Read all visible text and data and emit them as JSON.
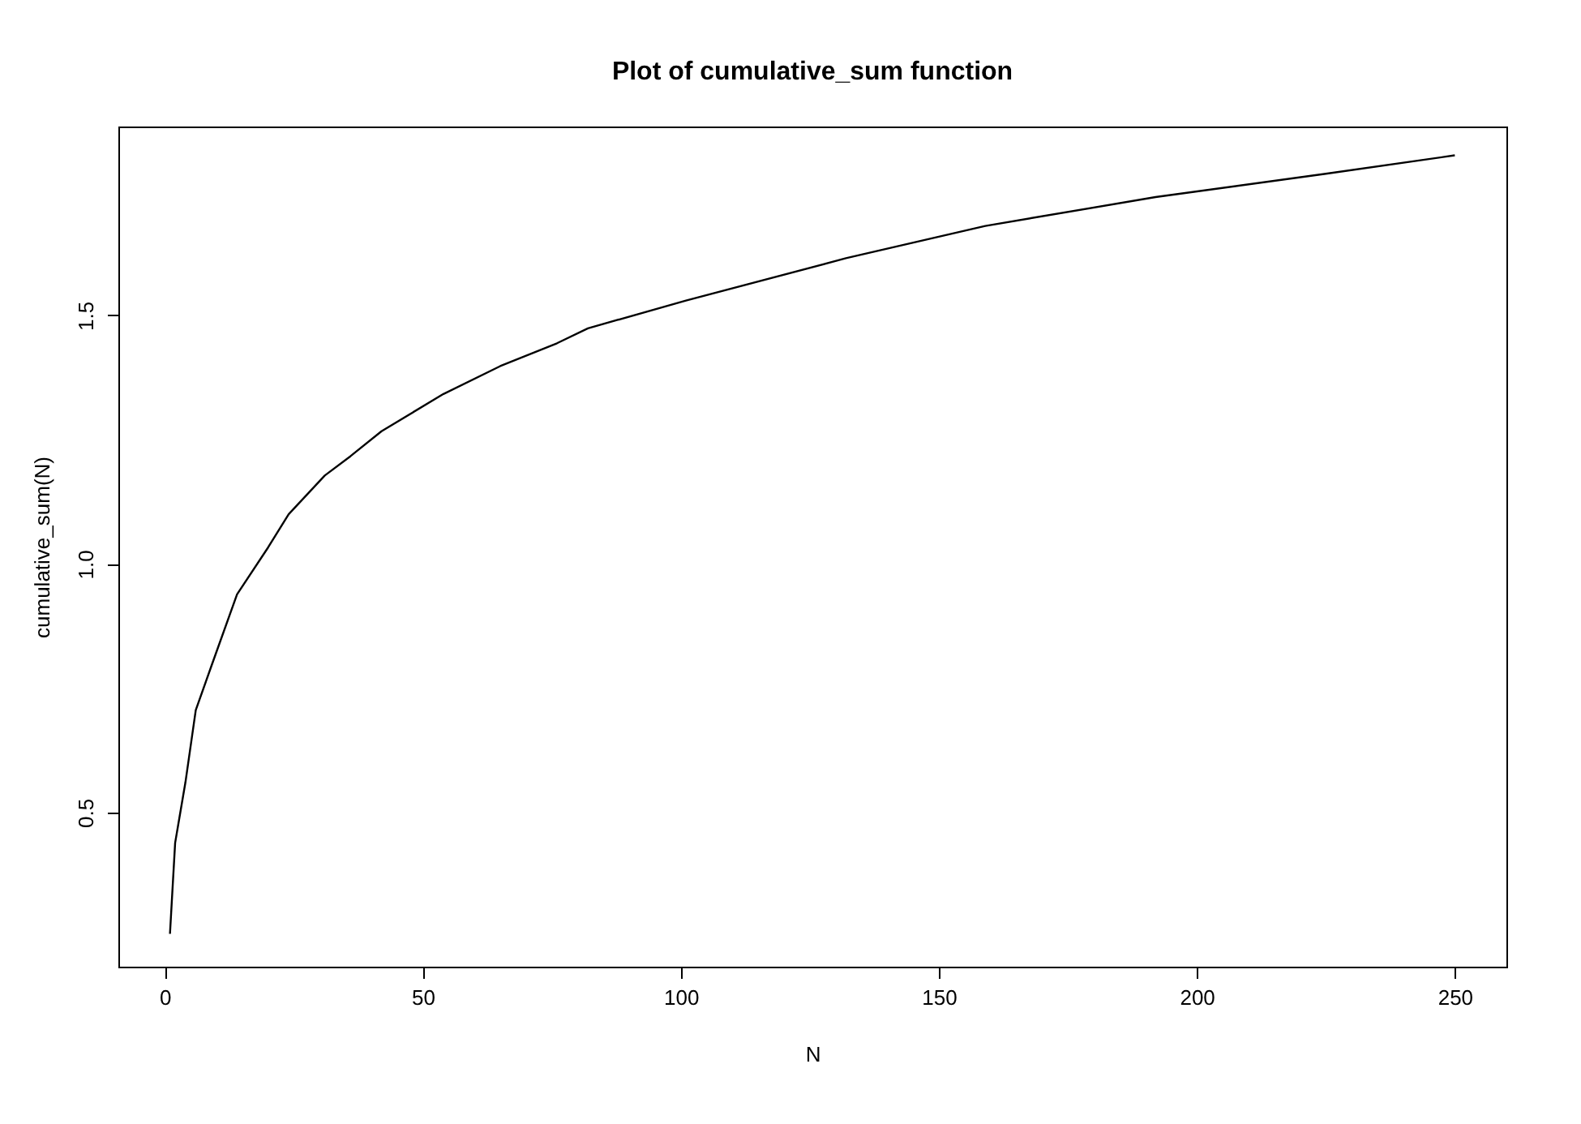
{
  "chart_data": {
    "type": "line",
    "title": "Plot of cumulative_sum function",
    "xlabel": "N",
    "ylabel": "cumulative_sum(N)",
    "x": [
      1,
      2,
      4,
      6,
      9,
      14,
      20,
      24,
      31,
      36,
      42,
      54,
      65,
      76,
      82,
      101,
      132,
      159,
      192,
      225,
      250
    ],
    "series": [
      {
        "color": "#000000",
        "values": [
          0.256,
          0.439,
          0.561,
          0.706,
          0.794,
          0.939,
          1.033,
          1.1,
          1.178,
          1.217,
          1.267,
          1.342,
          1.398,
          1.444,
          1.474,
          1.53,
          1.615,
          1.68,
          1.738,
          1.785,
          1.822
        ]
      }
    ],
    "xlim": [
      -9,
      260
    ],
    "ylim": [
      0.19,
      1.88
    ],
    "xticks": [
      0,
      50,
      100,
      150,
      200,
      250
    ],
    "yticks": [
      {
        "value": 0.5,
        "label": "0.5"
      },
      {
        "value": 1.0,
        "label": "1.0"
      },
      {
        "value": 1.5,
        "label": "1.5"
      }
    ],
    "grid": false,
    "marker": "none",
    "line_style": "solid"
  }
}
